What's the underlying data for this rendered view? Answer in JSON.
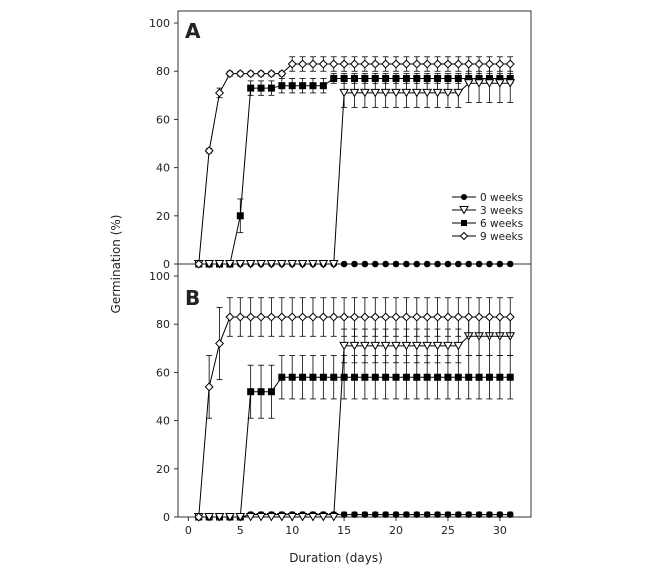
{
  "chart_data": {
    "type": "line",
    "xlabel": "Duration (days)",
    "ylabel": "Germination (%)",
    "xlim": [
      -1,
      33
    ],
    "ylim": [
      0,
      105
    ],
    "xticks": [
      0,
      5,
      10,
      15,
      20,
      25,
      30
    ],
    "yticks": [
      0,
      20,
      40,
      60,
      80,
      100
    ],
    "x": [
      1,
      2,
      3,
      4,
      5,
      6,
      7,
      8,
      9,
      10,
      11,
      12,
      13,
      14,
      15,
      16,
      17,
      18,
      19,
      20,
      21,
      22,
      23,
      24,
      25,
      26,
      27,
      28,
      29,
      30,
      31
    ],
    "legend": [
      "0 weeks",
      "3 weeks",
      "6 weeks",
      "9 weeks"
    ],
    "legend_position": "right-middle",
    "panels": [
      {
        "label": "A",
        "series": [
          {
            "name": "0 weeks",
            "marker": "circle-filled",
            "values": [
              0,
              0,
              0,
              0,
              0,
              0,
              0,
              0,
              0,
              0,
              0,
              0,
              0,
              0,
              0,
              0,
              0,
              0,
              0,
              0,
              0,
              0,
              0,
              0,
              0,
              0,
              0,
              0,
              0,
              0,
              0
            ],
            "errors": [
              0,
              0,
              0,
              0,
              0,
              0,
              0,
              0,
              0,
              0,
              0,
              0,
              0,
              0,
              0,
              0,
              0,
              0,
              0,
              0,
              0,
              0,
              0,
              0,
              0,
              0,
              0,
              0,
              0,
              0,
              0
            ]
          },
          {
            "name": "3 weeks",
            "marker": "triangle-down-open",
            "values": [
              0,
              0,
              0,
              0,
              0,
              0,
              0,
              0,
              0,
              0,
              0,
              0,
              0,
              0,
              71,
              71,
              71,
              71,
              71,
              71,
              71,
              71,
              71,
              71,
              71,
              71,
              75,
              75,
              75,
              75,
              75
            ],
            "errors": [
              0,
              0,
              0,
              0,
              0,
              0,
              0,
              0,
              0,
              0,
              0,
              0,
              0,
              0,
              6,
              6,
              6,
              6,
              6,
              6,
              6,
              6,
              6,
              6,
              6,
              6,
              8,
              8,
              8,
              8,
              8
            ]
          },
          {
            "name": "6 weeks",
            "marker": "square-filled",
            "values": [
              0,
              0,
              0,
              0,
              20,
              73,
              73,
              73,
              74,
              74,
              74,
              74,
              74,
              77,
              77,
              77,
              77,
              77,
              77,
              77,
              77,
              77,
              77,
              77,
              77,
              77,
              77,
              77,
              77,
              77,
              77
            ],
            "errors": [
              0,
              0,
              0,
              0,
              7,
              3,
              3,
              3,
              3,
              3,
              3,
              3,
              3,
              2,
              2,
              2,
              2,
              2,
              2,
              2,
              2,
              2,
              2,
              2,
              2,
              2,
              2,
              2,
              2,
              2,
              2
            ]
          },
          {
            "name": "9 weeks",
            "marker": "diamond-open",
            "values": [
              0,
              47,
              71,
              79,
              79,
              79,
              79,
              79,
              79,
              83,
              83,
              83,
              83,
              83,
              83,
              83,
              83,
              83,
              83,
              83,
              83,
              83,
              83,
              83,
              83,
              83,
              83,
              83,
              83,
              83,
              83
            ],
            "errors": [
              0,
              1,
              2,
              1,
              1,
              1,
              1,
              1,
              1,
              3,
              3,
              3,
              3,
              3,
              3,
              3,
              3,
              3,
              3,
              3,
              3,
              3,
              3,
              3,
              3,
              3,
              3,
              3,
              3,
              3,
              3
            ]
          }
        ]
      },
      {
        "label": "B",
        "series": [
          {
            "name": "0 weeks",
            "marker": "circle-filled",
            "values": [
              0,
              0,
              0,
              0,
              0,
              1,
              1,
              1,
              1,
              1,
              1,
              1,
              1,
              1,
              1,
              1,
              1,
              1,
              1,
              1,
              1,
              1,
              1,
              1,
              1,
              1,
              1,
              1,
              1,
              1,
              1
            ],
            "errors": [
              0,
              0,
              0,
              0,
              0,
              1,
              1,
              1,
              1,
              1,
              1,
              1,
              1,
              1,
              1,
              1,
              1,
              1,
              1,
              1,
              1,
              1,
              1,
              1,
              1,
              1,
              1,
              1,
              1,
              1,
              1
            ]
          },
          {
            "name": "3 weeks",
            "marker": "triangle-down-open",
            "values": [
              0,
              0,
              0,
              0,
              0,
              0,
              0,
              0,
              0,
              0,
              0,
              0,
              0,
              0,
              71,
              71,
              71,
              71,
              71,
              71,
              71,
              71,
              71,
              71,
              71,
              71,
              75,
              75,
              75,
              75,
              75
            ],
            "errors": [
              0,
              0,
              0,
              0,
              0,
              0,
              0,
              0,
              0,
              0,
              0,
              0,
              0,
              0,
              7,
              7,
              7,
              7,
              7,
              7,
              7,
              7,
              7,
              7,
              7,
              7,
              8,
              8,
              8,
              8,
              8
            ]
          },
          {
            "name": "6 weeks",
            "marker": "square-filled",
            "values": [
              0,
              0,
              0,
              0,
              0,
              52,
              52,
              52,
              58,
              58,
              58,
              58,
              58,
              58,
              58,
              58,
              58,
              58,
              58,
              58,
              58,
              58,
              58,
              58,
              58,
              58,
              58,
              58,
              58,
              58,
              58
            ],
            "errors": [
              0,
              0,
              0,
              0,
              0,
              11,
              11,
              11,
              9,
              9,
              9,
              9,
              9,
              9,
              9,
              9,
              9,
              9,
              9,
              9,
              9,
              9,
              9,
              9,
              9,
              9,
              9,
              9,
              9,
              9,
              9
            ]
          },
          {
            "name": "9 weeks",
            "marker": "diamond-open",
            "values": [
              0,
              54,
              72,
              83,
              83,
              83,
              83,
              83,
              83,
              83,
              83,
              83,
              83,
              83,
              83,
              83,
              83,
              83,
              83,
              83,
              83,
              83,
              83,
              83,
              83,
              83,
              83,
              83,
              83,
              83,
              83
            ],
            "errors": [
              0,
              13,
              15,
              8,
              8,
              8,
              8,
              8,
              8,
              8,
              8,
              8,
              8,
              8,
              8,
              8,
              8,
              8,
              8,
              8,
              8,
              8,
              8,
              8,
              8,
              8,
              8,
              8,
              8,
              8,
              8
            ]
          }
        ]
      }
    ]
  }
}
